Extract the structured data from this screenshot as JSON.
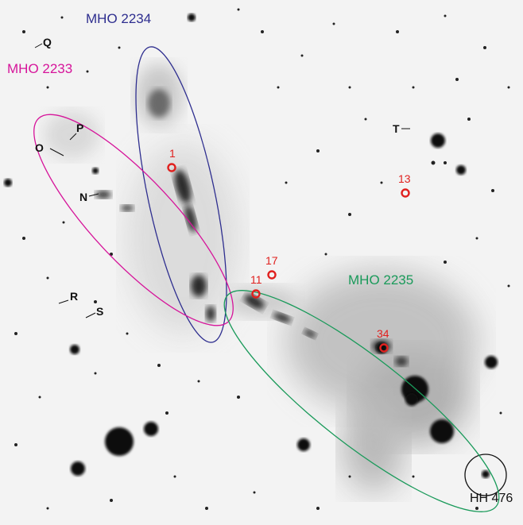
{
  "objects": {
    "mho_2234": {
      "label": "MHO 2234",
      "color": "#2e2e8f"
    },
    "mho_2233": {
      "label": "MHO 2233",
      "color": "#d6149a"
    },
    "mho_2235": {
      "label": "MHO 2235",
      "color": "#1a9a5a"
    },
    "hh_476": {
      "label": "HH 476",
      "color": "#111111"
    }
  },
  "knots": {
    "color": "#e0201e",
    "k1": "1",
    "k13": "13",
    "k17": "17",
    "k11": "11",
    "k34": "34"
  },
  "stars": {
    "color": "#111111",
    "Q": "Q",
    "P": "P",
    "O": "O",
    "N": "N",
    "T": "T",
    "R": "R",
    "S": "S"
  }
}
